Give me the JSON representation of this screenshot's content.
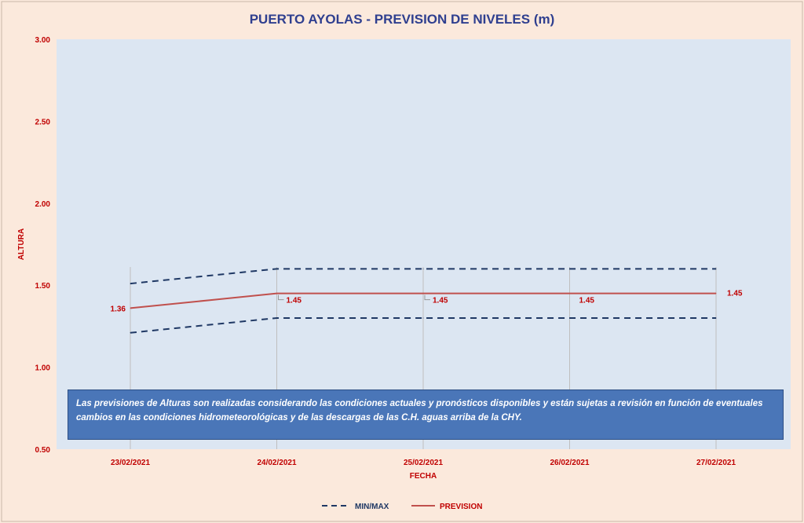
{
  "chart_data": {
    "type": "line",
    "title": "PUERTO AYOLAS - PREVISION DE NIVELES (m)",
    "xlabel": "FECHA",
    "ylabel": "ALTURA",
    "ylim": [
      0.5,
      3.0
    ],
    "yticks": [
      "0.50",
      "1.00",
      "1.50",
      "2.00",
      "2.50",
      "3.00"
    ],
    "categories": [
      "23/02/2021",
      "24/02/2021",
      "25/02/2021",
      "26/02/2021",
      "27/02/2021"
    ],
    "series": [
      {
        "name": "MIN/MAX",
        "values": [
          1.51,
          1.6,
          1.6,
          1.6,
          1.6
        ],
        "style": "dashed",
        "color": "#1f3864"
      },
      {
        "name": "MIN/MAX",
        "values": [
          1.21,
          1.3,
          1.3,
          1.3,
          1.3
        ],
        "style": "dashed",
        "color": "#1f3864"
      },
      {
        "name": "PREVISION",
        "values": [
          1.36,
          1.45,
          1.45,
          1.45,
          1.45
        ],
        "style": "solid",
        "color": "#c0504d"
      }
    ],
    "data_labels": [
      "1.36",
      "1.45",
      "1.45",
      "1.45",
      "1.45"
    ],
    "legend": {
      "placement": "bottom",
      "entries": [
        "MIN/MAX",
        "PREVISION"
      ]
    },
    "grid": {
      "vertical": true,
      "horizontal": false
    },
    "annotation": "Las previsiones de Alturas son realizadas considerando las condiciones actuales y pronósticos disponibles y están sujetas a revisión en función de eventuales cambios en las condiciones hidrometeorológicas y de las descargas de las C.H. aguas arriba de la CHY.",
    "colors": {
      "plot_bg": "#dce6f2",
      "outer_bg": "#fbe9dc",
      "note_bg": "#4a76b8",
      "text_accent": "#c00000",
      "title": "#2f3f8f"
    }
  }
}
